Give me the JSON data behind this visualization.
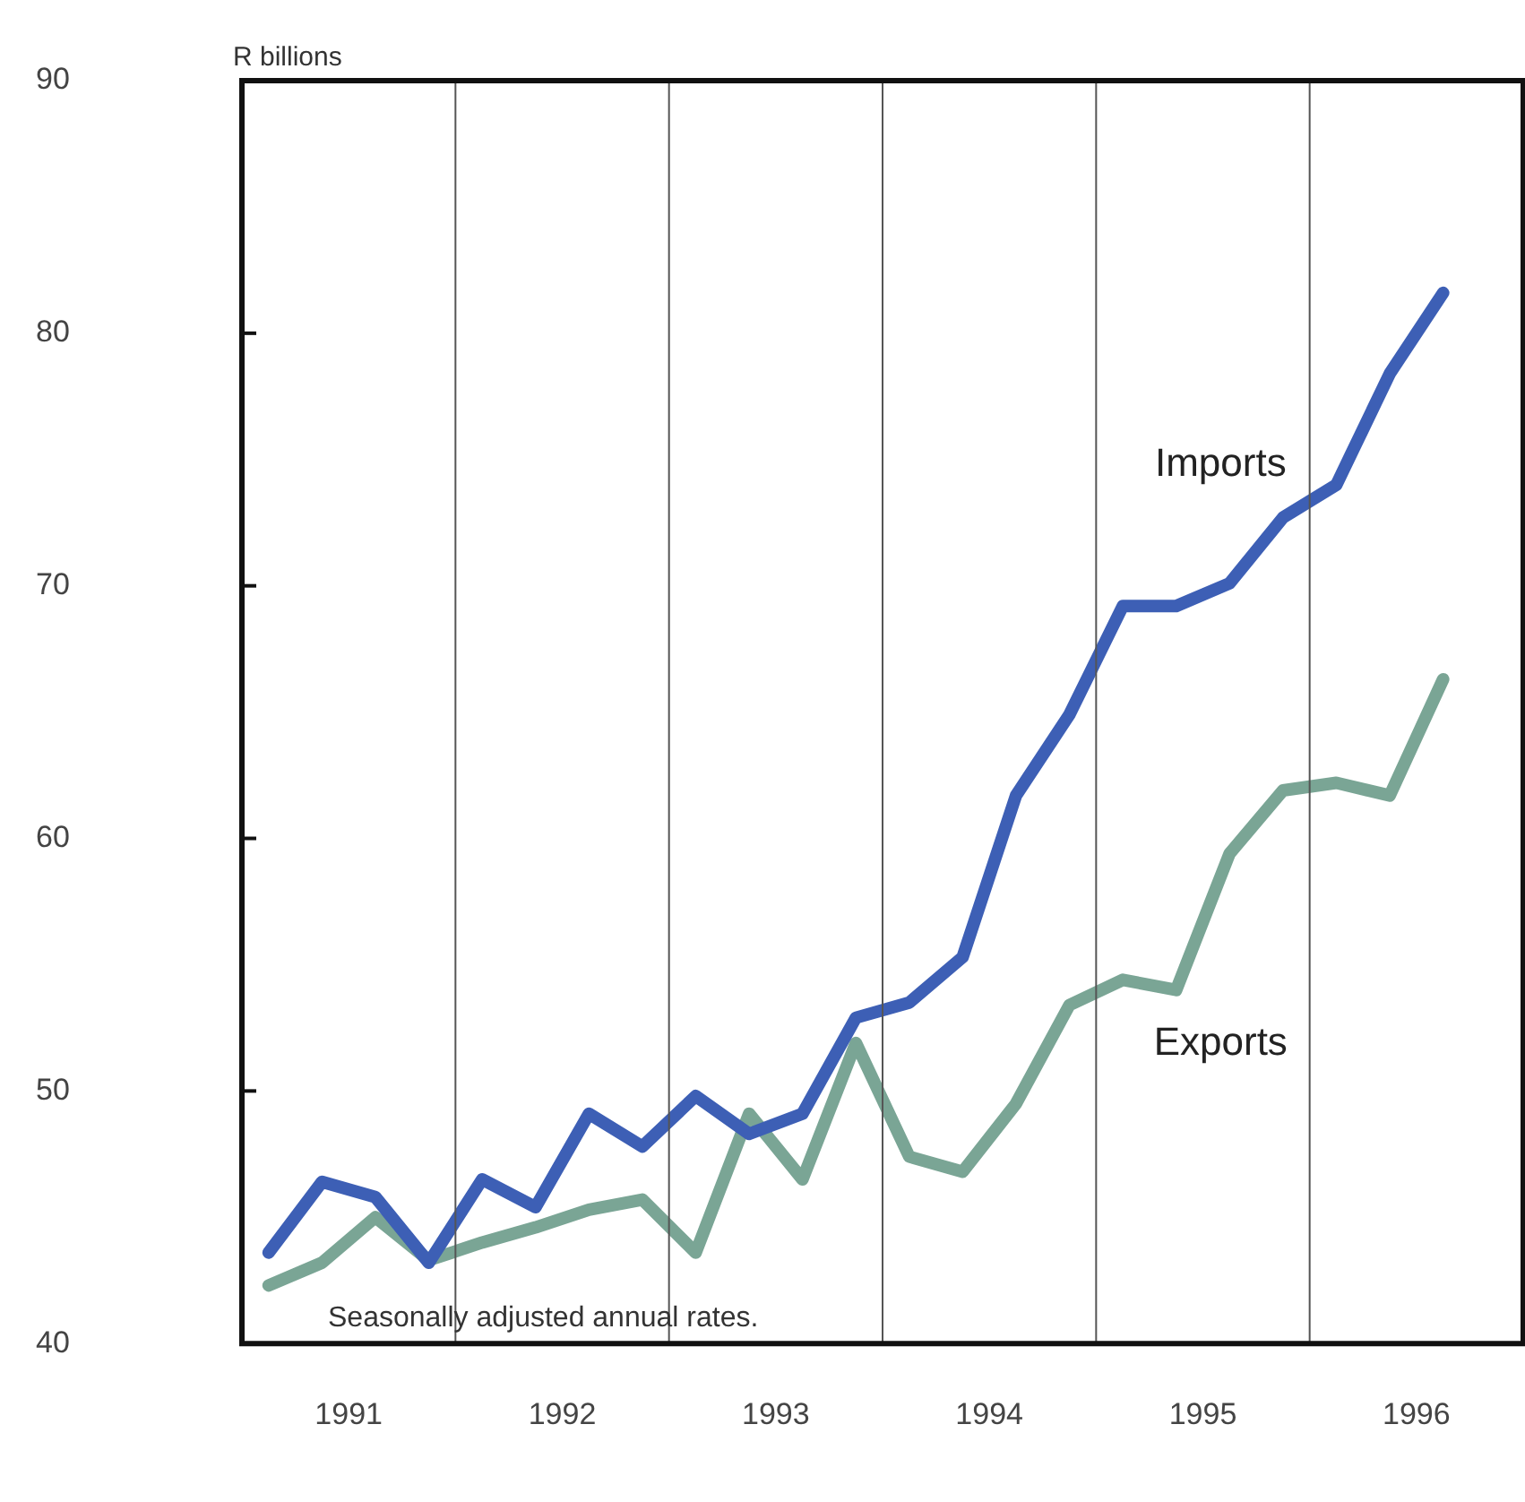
{
  "chart_data": {
    "type": "line",
    "ylabel": "R billions",
    "annotations": [
      "Seasonally adjusted annual rates."
    ],
    "x": [
      1991.125,
      1991.375,
      1991.625,
      1991.875,
      1992.125,
      1992.375,
      1992.625,
      1992.875,
      1993.125,
      1993.375,
      1993.625,
      1993.875,
      1994.125,
      1994.375,
      1994.625,
      1994.875,
      1995.125,
      1995.375,
      1995.625,
      1995.875,
      1996.125,
      1996.375,
      1996.625
    ],
    "series": [
      {
        "name": "Imports",
        "color": "#3d5fb5",
        "values": [
          43.6,
          46.4,
          45.8,
          43.2,
          46.5,
          45.4,
          49.1,
          47.8,
          49.8,
          48.3,
          49.1,
          52.9,
          53.5,
          55.3,
          61.7,
          64.9,
          69.2,
          69.2,
          70.1,
          72.7,
          74.0,
          78.4,
          81.6
        ]
      },
      {
        "name": "Exports",
        "color": "#7aa595",
        "values": [
          42.3,
          43.2,
          45.0,
          43.3,
          44.0,
          44.6,
          45.3,
          45.7,
          43.6,
          49.1,
          46.5,
          51.9,
          47.4,
          46.8,
          49.5,
          53.4,
          54.4,
          54.0,
          59.4,
          61.9,
          62.2,
          61.7,
          66.3
        ]
      }
    ],
    "xlim": [
      1991,
      1997
    ],
    "xticks": [
      {
        "value": 1991.5,
        "label": "1991"
      },
      {
        "value": 1992.5,
        "label": "1992"
      },
      {
        "value": 1993.5,
        "label": "1993"
      },
      {
        "value": 1994.5,
        "label": "1994"
      },
      {
        "value": 1995.5,
        "label": "1995"
      },
      {
        "value": 1996.5,
        "label": "1996"
      }
    ],
    "ylim": [
      40,
      90
    ],
    "yticks": [
      40,
      50,
      60,
      70,
      80,
      90
    ],
    "ref_lines": [
      {
        "axis": "x",
        "value": 1992
      },
      {
        "axis": "x",
        "value": 1993
      },
      {
        "axis": "x",
        "value": 1994
      },
      {
        "axis": "x",
        "value": 1995
      },
      {
        "axis": "x",
        "value": 1996
      }
    ],
    "grid": false,
    "legend": false,
    "marker": "none",
    "line_style": "solid"
  }
}
